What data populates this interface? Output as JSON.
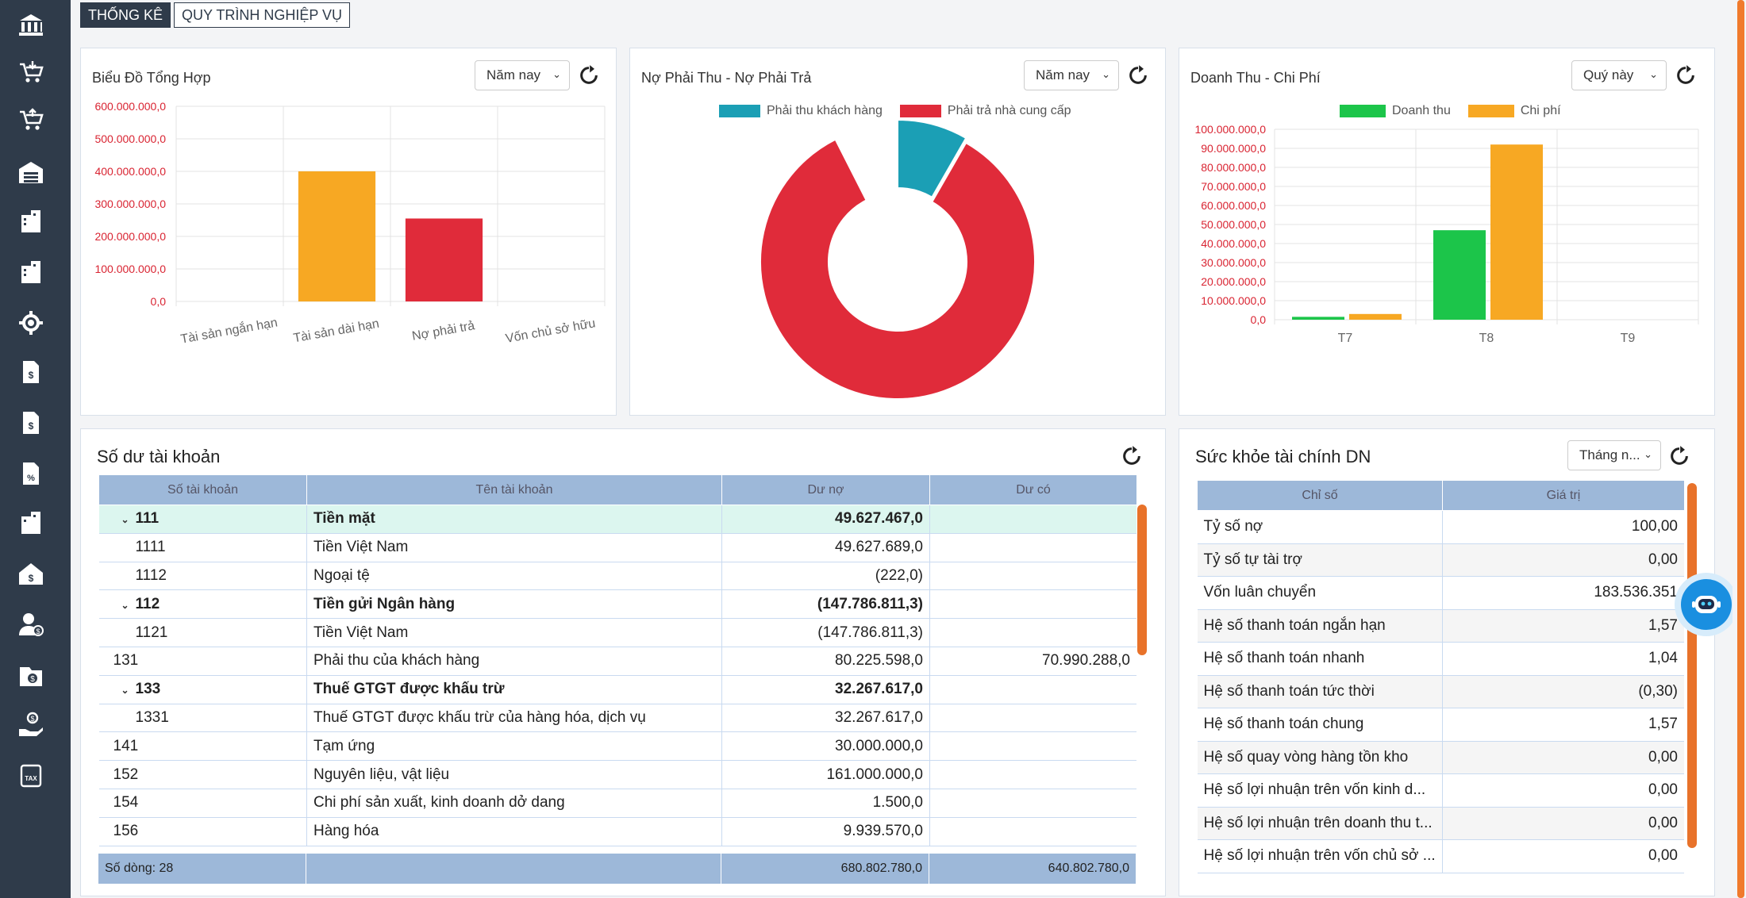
{
  "tabs": [
    {
      "label": "THỐNG KÊ",
      "active": true
    },
    {
      "label": "QUY TRÌNH NGHIỆP VỤ",
      "active": false
    }
  ],
  "sidebar_icons": [
    "bank-icon",
    "cart-download-icon",
    "cart-upload-icon",
    "warehouse-icon",
    "building-doc-icon",
    "building-doc-2-icon",
    "gear-icon",
    "invoice-dollar-icon",
    "invoice-dollar-2-icon",
    "document-percent-icon",
    "building-report-icon",
    "house-dollar-icon",
    "user-dollar-icon",
    "folder-dollar-icon",
    "hand-dollar-icon",
    "tax-icon"
  ],
  "chart1": {
    "title": "Biểu Đồ Tổng Hợp",
    "period": "Năm nay",
    "chart_data": {
      "type": "bar",
      "categories": [
        "Tài sản ngắn hạn",
        "Tài sản dài hạn",
        "Nợ phải trả",
        "Vốn chủ sở hữu"
      ],
      "values": [
        0,
        400000000,
        255000000,
        0
      ],
      "colors": [
        "#f7a823",
        "#f7a823",
        "#e02b3a",
        "#e02b3a"
      ],
      "ylim": [
        0,
        600000000
      ],
      "yticks": [
        "600.000.000,0",
        "500.000.000,0",
        "400.000.000,0",
        "300.000.000,0",
        "200.000.000,0",
        "100.000.000,0",
        "0,0"
      ]
    }
  },
  "chart2": {
    "title": "Nợ Phải Thu - Nợ Phải Trả",
    "period": "Năm nay",
    "chart_data": {
      "type": "pie",
      "labels": [
        "Phải thu khách hàng",
        "Phải trả nhà cung cấp"
      ],
      "values": [
        8.3,
        91.7
      ],
      "colors": [
        "#1b9fb5",
        "#e02b3a"
      ]
    }
  },
  "chart3": {
    "title": "Doanh Thu - Chi Phí",
    "period": "Quý này",
    "chart_data": {
      "type": "bar",
      "categories": [
        "T7",
        "T8",
        "T9"
      ],
      "series": [
        {
          "name": "Doanh thu",
          "color": "#1cc54a",
          "values": [
            1500000,
            47000000,
            0
          ]
        },
        {
          "name": "Chi phí",
          "color": "#f7a823",
          "values": [
            3000000,
            92000000,
            0
          ]
        }
      ],
      "ylim": [
        0,
        100000000
      ],
      "yticks": [
        "100.000.000,0",
        "90.000.000,0",
        "80.000.000,0",
        "70.000.000,0",
        "60.000.000,0",
        "50.000.000,0",
        "40.000.000,0",
        "30.000.000,0",
        "20.000.000,0",
        "10.000.000,0",
        "0,0"
      ]
    }
  },
  "accounts": {
    "title": "Số dư tài khoản",
    "columns": [
      "Số tài khoản",
      "Tên tài khoản",
      "Dư nợ",
      "Dư có"
    ],
    "rows": [
      {
        "code": "111",
        "name": "Tiền mặt",
        "debit": "49.627.467,0",
        "credit": "",
        "group": true,
        "highlight": true,
        "indent": false
      },
      {
        "code": "1111",
        "name": "Tiền Việt Nam",
        "debit": "49.627.689,0",
        "credit": "",
        "group": false,
        "highlight": false,
        "indent": true
      },
      {
        "code": "1112",
        "name": "Ngoại tệ",
        "debit": "(222,0)",
        "credit": "",
        "group": false,
        "highlight": false,
        "indent": true
      },
      {
        "code": "112",
        "name": "Tiền gửi Ngân hàng",
        "debit": "(147.786.811,3)",
        "credit": "",
        "group": true,
        "highlight": false,
        "indent": false
      },
      {
        "code": "1121",
        "name": "Tiền Việt Nam",
        "debit": "(147.786.811,3)",
        "credit": "",
        "group": false,
        "highlight": false,
        "indent": true
      },
      {
        "code": "131",
        "name": "Phải thu của khách hàng",
        "debit": "80.225.598,0",
        "credit": "70.990.288,0",
        "group": false,
        "highlight": false,
        "indent": false
      },
      {
        "code": "133",
        "name": "Thuế GTGT được khấu trừ",
        "debit": "32.267.617,0",
        "credit": "",
        "group": true,
        "highlight": false,
        "indent": false
      },
      {
        "code": "1331",
        "name": "Thuế GTGT được khấu trừ của hàng hóa, dịch vụ",
        "debit": "32.267.617,0",
        "credit": "",
        "group": false,
        "highlight": false,
        "indent": true
      },
      {
        "code": "141",
        "name": "Tạm ứng",
        "debit": "30.000.000,0",
        "credit": "",
        "group": false,
        "highlight": false,
        "indent": false
      },
      {
        "code": "152",
        "name": "Nguyên liệu, vật liệu",
        "debit": "161.000.000,0",
        "credit": "",
        "group": false,
        "highlight": false,
        "indent": false
      },
      {
        "code": "154",
        "name": "Chi phí sản xuất, kinh doanh dở dang",
        "debit": "1.500,0",
        "credit": "",
        "group": false,
        "highlight": false,
        "indent": false
      },
      {
        "code": "156",
        "name": "Hàng hóa",
        "debit": "9.939.570,0",
        "credit": "",
        "group": false,
        "highlight": false,
        "indent": false
      }
    ],
    "footer": {
      "count_label": "Số dòng: 28",
      "debit_total": "680.802.780,0",
      "credit_total": "640.802.780,0"
    }
  },
  "health": {
    "title": "Sức khỏe tài chính DN",
    "period": "Tháng n...",
    "columns": [
      "Chỉ số",
      "Giá trị"
    ],
    "rows": [
      {
        "name": "Tỷ số nợ",
        "value": "100,00"
      },
      {
        "name": "Tỷ số tự tài trợ",
        "value": "0,00"
      },
      {
        "name": "Vốn luân chuyển",
        "value": "183.536.351"
      },
      {
        "name": "Hệ số thanh toán ngắn hạn",
        "value": "1,57"
      },
      {
        "name": "Hệ số thanh toán nhanh",
        "value": "1,04"
      },
      {
        "name": "Hệ số thanh toán tức thời",
        "value": "(0,30)"
      },
      {
        "name": "Hệ số thanh toán chung",
        "value": "1,57"
      },
      {
        "name": "Hệ số quay vòng hàng tồn kho",
        "value": "0,00"
      },
      {
        "name": "Hệ số lợi nhuận trên vốn kinh d...",
        "value": "0,00"
      },
      {
        "name": "Hệ số lợi nhuận trên doanh thu t...",
        "value": "0,00"
      },
      {
        "name": "Hệ số lợi nhuận trên vốn chủ sở ...",
        "value": "0,00"
      }
    ]
  }
}
